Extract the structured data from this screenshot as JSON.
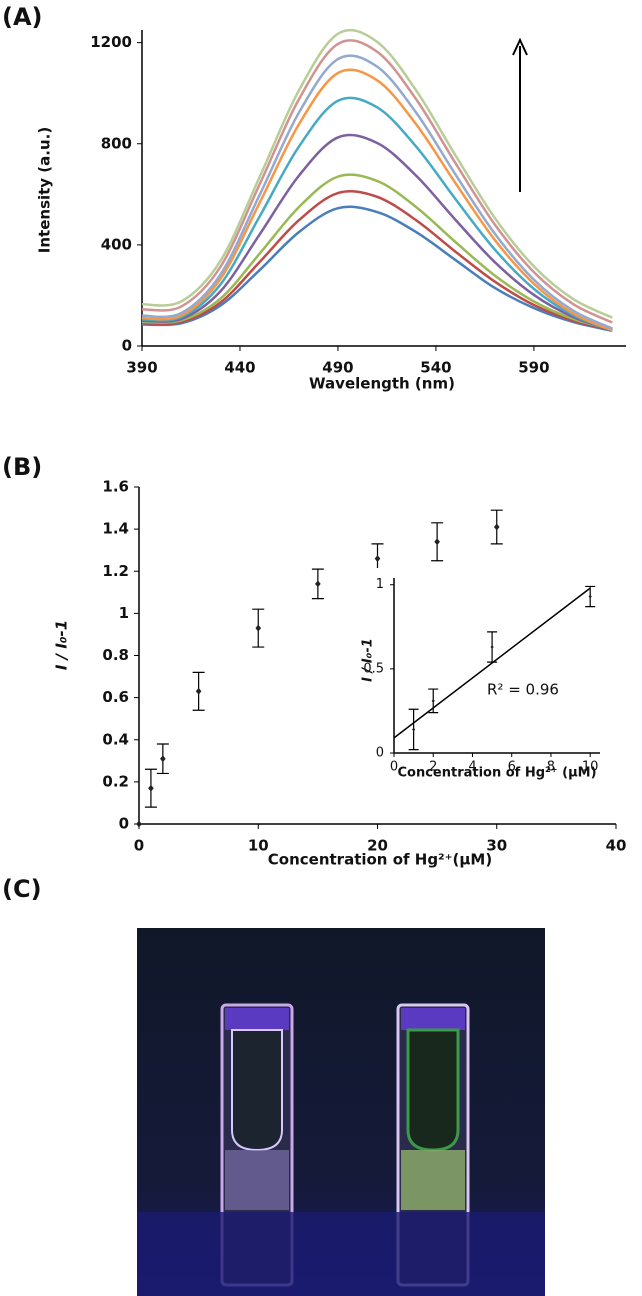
{
  "panels": [
    "(A)",
    "(B)",
    "(C)"
  ],
  "chart_data": [
    {
      "type": "line",
      "x_label": "Wavelength (nm)",
      "y_label": "Intensity (a.u.)",
      "x": [
        390,
        410,
        430,
        450,
        470,
        490,
        510,
        530,
        550,
        570,
        590,
        610,
        630
      ],
      "xlim": [
        390,
        637
      ],
      "xticks": [
        390,
        440,
        490,
        540,
        590
      ],
      "ylim": [
        0,
        1250
      ],
      "yticks": [
        0,
        400,
        800,
        1200
      ],
      "series": [
        {
          "color": "#4a7ebb",
          "values": [
            85,
            90,
            160,
            300,
            450,
            545,
            530,
            450,
            340,
            230,
            150,
            95,
            60
          ]
        },
        {
          "color": "#be4b48",
          "values": [
            90,
            95,
            172,
            332,
            497,
            605,
            590,
            497,
            373,
            255,
            162,
            100,
            64
          ]
        },
        {
          "color": "#98b954",
          "values": [
            95,
            101,
            187,
            365,
            549,
            670,
            653,
            549,
            411,
            279,
            176,
            107,
            66
          ]
        },
        {
          "color": "#7d60a0",
          "values": [
            100,
            107,
            216,
            441,
            673,
            825,
            803,
            673,
            499,
            332,
            202,
            115,
            64
          ]
        },
        {
          "color": "#46aac5",
          "values": [
            105,
            114,
            243,
            512,
            788,
            970,
            944,
            788,
            581,
            382,
            226,
            122,
            62
          ]
        },
        {
          "color": "#f79646",
          "values": [
            110,
            120,
            265,
            566,
            876,
            1080,
            1051,
            876,
            644,
            420,
            246,
            129,
            62
          ]
        },
        {
          "color": "#93a9cf",
          "values": [
            120,
            130,
            282,
            597,
            922,
            1135,
            1105,
            922,
            678,
            445,
            262,
            140,
            69
          ]
        },
        {
          "color": "#d19392",
          "values": [
            145,
            156,
            313,
            639,
            975,
            1195,
            1164,
            975,
            723,
            481,
            292,
            166,
            93
          ]
        },
        {
          "color": "#b9cd96",
          "values": [
            165,
            176,
            336,
            668,
            1010,
            1235,
            1203,
            1010,
            754,
            507,
            315,
            186,
            112
          ]
        }
      ]
    },
    {
      "type": "scatter",
      "x_label": "Concentration of Hg²⁺(μM)",
      "y_label": "I / I₀-1",
      "color": "#222222",
      "x": [
        0,
        1,
        2,
        5,
        10,
        15,
        20,
        25,
        30
      ],
      "values": [
        0,
        0.17,
        0.31,
        0.63,
        0.93,
        1.14,
        1.26,
        1.34,
        1.41
      ],
      "errors": [
        0,
        0.09,
        0.07,
        0.09,
        0.09,
        0.07,
        0.07,
        0.09,
        0.08
      ],
      "xlim": [
        0,
        40
      ],
      "xticks": [
        0,
        10,
        20,
        30,
        40
      ],
      "ylim": [
        0,
        1.6
      ],
      "yticks": [
        0,
        0.2,
        0.4,
        0.6,
        0.8,
        1,
        1.2,
        1.4,
        1.6
      ]
    },
    {
      "type": "scatter",
      "x_label": "Concentration of Hg²⁺ (μM)",
      "y_label": "I / I₀-1",
      "color": "#222222",
      "x": [
        0,
        1,
        2,
        5,
        10
      ],
      "values": [
        0,
        0.14,
        0.31,
        0.63,
        0.93
      ],
      "errors": [
        0,
        0.12,
        0.07,
        0.09,
        0.06
      ],
      "trendline": {
        "x": [
          0,
          10
        ],
        "values": [
          0.09,
          0.98
        ]
      },
      "annotation": "R² = 0.96",
      "xlim": [
        0,
        10.5
      ],
      "xticks": [
        0,
        2,
        4,
        6,
        8,
        10
      ],
      "ylim": [
        0,
        1.04
      ],
      "yticks": [
        0,
        0.5,
        1
      ]
    }
  ]
}
